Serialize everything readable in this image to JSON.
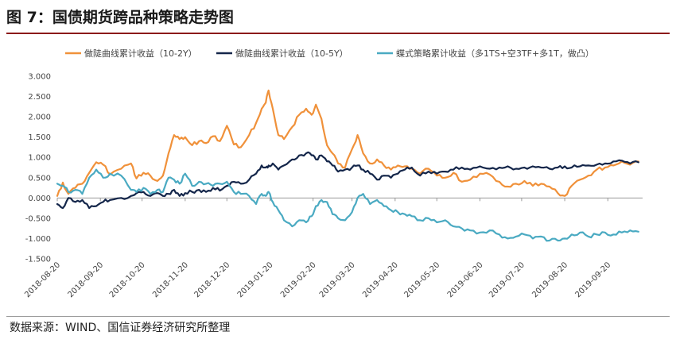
{
  "figure": {
    "title": "图 7：国债期货跨品种策略走势图",
    "source": "数据来源：WIND、国信证券经济研究所整理"
  },
  "chart_data": {
    "type": "line",
    "title": "图 7：国债期货跨品种策略走势图",
    "xlabel": "",
    "ylabel": "",
    "ylim": [
      -1.5,
      3.0
    ],
    "yticks": [
      "3.000",
      "2.500",
      "2.000",
      "1.500",
      "1.000",
      "0.500",
      "0.000",
      "-0.500",
      "-1.000",
      "-1.500"
    ],
    "yticks_values": [
      3.0,
      2.5,
      2.0,
      1.5,
      1.0,
      0.5,
      0.0,
      -0.5,
      -1.0,
      -1.5
    ],
    "xticks": [
      "2018-08-20",
      "2018-09-20",
      "2018-10-20",
      "2018-11-20",
      "2018-12-20",
      "2019-01-20",
      "2019-02-20",
      "2019-03-20",
      "2019-04-20",
      "2019-05-20",
      "2019-06-20",
      "2019-07-20",
      "2019-08-20",
      "2019-09-20"
    ],
    "x_range": [
      "2018-08-20",
      "2019-10-15"
    ],
    "grid": false,
    "legend_position": "top",
    "series": [
      {
        "name": "做陡曲线累计收益（10-2Y）",
        "color": "#f0913a",
        "points": [
          [
            "2018-08-20",
            0.05
          ],
          [
            "2018-08-24",
            0.38
          ],
          [
            "2018-08-28",
            0.1
          ],
          [
            "2018-09-02",
            0.25
          ],
          [
            "2018-09-07",
            0.35
          ],
          [
            "2018-09-12",
            0.62
          ],
          [
            "2018-09-17",
            0.88
          ],
          [
            "2018-09-22",
            0.82
          ],
          [
            "2018-09-27",
            0.58
          ],
          [
            "2018-10-05",
            0.72
          ],
          [
            "2018-10-12",
            0.85
          ],
          [
            "2018-10-16",
            0.48
          ],
          [
            "2018-10-21",
            0.62
          ],
          [
            "2018-10-26",
            0.55
          ],
          [
            "2018-10-31",
            0.42
          ],
          [
            "2018-11-04",
            0.55
          ],
          [
            "2018-11-08",
            1.1
          ],
          [
            "2018-11-12",
            1.55
          ],
          [
            "2018-11-16",
            1.45
          ],
          [
            "2018-11-20",
            1.5
          ],
          [
            "2018-11-25",
            1.3
          ],
          [
            "2018-11-30",
            1.4
          ],
          [
            "2018-12-05",
            1.35
          ],
          [
            "2018-12-10",
            1.52
          ],
          [
            "2018-12-15",
            1.4
          ],
          [
            "2018-12-20",
            1.78
          ],
          [
            "2018-12-25",
            1.32
          ],
          [
            "2018-12-30",
            1.25
          ],
          [
            "2019-01-05",
            1.55
          ],
          [
            "2019-01-10",
            1.85
          ],
          [
            "2019-01-14",
            2.2
          ],
          [
            "2019-01-17",
            2.35
          ],
          [
            "2019-01-19",
            2.65
          ],
          [
            "2019-01-22",
            2.2
          ],
          [
            "2019-01-26",
            1.55
          ],
          [
            "2019-01-30",
            1.45
          ],
          [
            "2019-02-05",
            1.75
          ],
          [
            "2019-02-10",
            2.05
          ],
          [
            "2019-02-15",
            2.2
          ],
          [
            "2019-02-19",
            2.05
          ],
          [
            "2019-02-22",
            2.3
          ],
          [
            "2019-02-26",
            1.95
          ],
          [
            "2019-03-02",
            1.3
          ],
          [
            "2019-03-06",
            1.1
          ],
          [
            "2019-03-10",
            0.85
          ],
          [
            "2019-03-15",
            0.75
          ],
          [
            "2019-03-20",
            1.2
          ],
          [
            "2019-03-24",
            1.55
          ],
          [
            "2019-03-28",
            1.1
          ],
          [
            "2019-04-02",
            0.85
          ],
          [
            "2019-04-07",
            0.95
          ],
          [
            "2019-04-12",
            0.8
          ],
          [
            "2019-04-17",
            0.7
          ],
          [
            "2019-04-22",
            0.8
          ],
          [
            "2019-04-27",
            0.78
          ],
          [
            "2019-05-02",
            0.72
          ],
          [
            "2019-05-08",
            0.6
          ],
          [
            "2019-05-14",
            0.72
          ],
          [
            "2019-05-20",
            0.55
          ],
          [
            "2019-05-26",
            0.5
          ],
          [
            "2019-06-01",
            0.62
          ],
          [
            "2019-06-07",
            0.4
          ],
          [
            "2019-06-13",
            0.45
          ],
          [
            "2019-06-20",
            0.6
          ],
          [
            "2019-06-27",
            0.58
          ],
          [
            "2019-07-04",
            0.4
          ],
          [
            "2019-07-10",
            0.28
          ],
          [
            "2019-07-16",
            0.35
          ],
          [
            "2019-07-22",
            0.42
          ],
          [
            "2019-07-28",
            0.3
          ],
          [
            "2019-08-03",
            0.35
          ],
          [
            "2019-08-09",
            0.28
          ],
          [
            "2019-08-15",
            0.12
          ],
          [
            "2019-08-20",
            0.05
          ],
          [
            "2019-08-25",
            0.3
          ],
          [
            "2019-08-31",
            0.45
          ],
          [
            "2019-09-06",
            0.55
          ],
          [
            "2019-09-12",
            0.7
          ],
          [
            "2019-09-18",
            0.75
          ],
          [
            "2019-09-24",
            0.8
          ],
          [
            "2019-09-30",
            0.9
          ],
          [
            "2019-10-06",
            0.82
          ],
          [
            "2019-10-12",
            0.9
          ]
        ]
      },
      {
        "name": "做陡曲线累计收益（10-5Y）",
        "color": "#14264a",
        "points": [
          [
            "2018-08-20",
            -0.15
          ],
          [
            "2018-08-24",
            -0.25
          ],
          [
            "2018-08-28",
            0.0
          ],
          [
            "2018-09-02",
            -0.1
          ],
          [
            "2018-09-07",
            -0.05
          ],
          [
            "2018-09-12",
            -0.25
          ],
          [
            "2018-09-17",
            -0.2
          ],
          [
            "2018-09-22",
            -0.1
          ],
          [
            "2018-09-27",
            -0.05
          ],
          [
            "2018-10-05",
            0.0
          ],
          [
            "2018-10-12",
            0.05
          ],
          [
            "2018-10-16",
            0.12
          ],
          [
            "2018-10-21",
            0.15
          ],
          [
            "2018-10-26",
            0.05
          ],
          [
            "2018-10-31",
            0.12
          ],
          [
            "2018-11-04",
            0.05
          ],
          [
            "2018-11-08",
            0.1
          ],
          [
            "2018-11-12",
            0.2
          ],
          [
            "2018-11-16",
            0.05
          ],
          [
            "2018-11-20",
            0.12
          ],
          [
            "2018-11-25",
            0.15
          ],
          [
            "2018-11-30",
            0.2
          ],
          [
            "2018-12-05",
            0.15
          ],
          [
            "2018-12-10",
            0.25
          ],
          [
            "2018-12-15",
            0.18
          ],
          [
            "2018-12-20",
            0.3
          ],
          [
            "2018-12-25",
            0.4
          ],
          [
            "2018-12-30",
            0.35
          ],
          [
            "2019-01-05",
            0.45
          ],
          [
            "2019-01-10",
            0.6
          ],
          [
            "2019-01-14",
            0.8
          ],
          [
            "2019-01-17",
            0.75
          ],
          [
            "2019-01-19",
            0.8
          ],
          [
            "2019-01-22",
            0.85
          ],
          [
            "2019-01-26",
            0.7
          ],
          [
            "2019-01-30",
            0.8
          ],
          [
            "2019-02-05",
            0.95
          ],
          [
            "2019-02-10",
            1.05
          ],
          [
            "2019-02-15",
            1.1
          ],
          [
            "2019-02-19",
            1.05
          ],
          [
            "2019-02-22",
            0.95
          ],
          [
            "2019-02-26",
            1.05
          ],
          [
            "2019-03-02",
            0.9
          ],
          [
            "2019-03-06",
            0.8
          ],
          [
            "2019-03-10",
            0.65
          ],
          [
            "2019-03-15",
            0.7
          ],
          [
            "2019-03-20",
            0.75
          ],
          [
            "2019-03-24",
            0.8
          ],
          [
            "2019-03-28",
            0.7
          ],
          [
            "2019-04-02",
            0.6
          ],
          [
            "2019-04-07",
            0.45
          ],
          [
            "2019-04-12",
            0.55
          ],
          [
            "2019-04-17",
            0.5
          ],
          [
            "2019-04-22",
            0.6
          ],
          [
            "2019-04-27",
            0.7
          ],
          [
            "2019-05-02",
            0.75
          ],
          [
            "2019-05-08",
            0.55
          ],
          [
            "2019-05-14",
            0.65
          ],
          [
            "2019-05-20",
            0.6
          ],
          [
            "2019-05-26",
            0.65
          ],
          [
            "2019-06-01",
            0.7
          ],
          [
            "2019-06-07",
            0.75
          ],
          [
            "2019-06-13",
            0.7
          ],
          [
            "2019-06-20",
            0.78
          ],
          [
            "2019-06-27",
            0.72
          ],
          [
            "2019-07-04",
            0.75
          ],
          [
            "2019-07-10",
            0.78
          ],
          [
            "2019-07-16",
            0.72
          ],
          [
            "2019-07-22",
            0.75
          ],
          [
            "2019-07-28",
            0.78
          ],
          [
            "2019-08-03",
            0.75
          ],
          [
            "2019-08-09",
            0.72
          ],
          [
            "2019-08-15",
            0.75
          ],
          [
            "2019-08-20",
            0.78
          ],
          [
            "2019-08-25",
            0.75
          ],
          [
            "2019-08-31",
            0.78
          ],
          [
            "2019-09-06",
            0.8
          ],
          [
            "2019-09-12",
            0.82
          ],
          [
            "2019-09-18",
            0.85
          ],
          [
            "2019-09-24",
            0.9
          ],
          [
            "2019-09-30",
            0.92
          ],
          [
            "2019-10-06",
            0.85
          ],
          [
            "2019-10-12",
            0.88
          ]
        ]
      },
      {
        "name": "蝶式策略累计收益（多1TS+空3TF+多1T，做凸）",
        "color": "#4aaac2",
        "points": [
          [
            "2018-08-20",
            0.35
          ],
          [
            "2018-08-24",
            0.3
          ],
          [
            "2018-08-28",
            0.15
          ],
          [
            "2018-09-02",
            0.2
          ],
          [
            "2018-09-07",
            0.1
          ],
          [
            "2018-09-12",
            0.5
          ],
          [
            "2018-09-17",
            0.7
          ],
          [
            "2018-09-22",
            0.5
          ],
          [
            "2018-09-27",
            0.6
          ],
          [
            "2018-10-05",
            0.55
          ],
          [
            "2018-10-12",
            0.2
          ],
          [
            "2018-10-16",
            0.15
          ],
          [
            "2018-10-21",
            0.25
          ],
          [
            "2018-10-26",
            0.1
          ],
          [
            "2018-10-31",
            0.2
          ],
          [
            "2018-11-04",
            0.15
          ],
          [
            "2018-11-08",
            0.5
          ],
          [
            "2018-11-12",
            0.45
          ],
          [
            "2018-11-16",
            0.35
          ],
          [
            "2018-11-20",
            0.6
          ],
          [
            "2018-11-25",
            0.3
          ],
          [
            "2018-11-30",
            0.4
          ],
          [
            "2018-12-05",
            0.35
          ],
          [
            "2018-12-10",
            0.3
          ],
          [
            "2018-12-15",
            0.35
          ],
          [
            "2018-12-20",
            0.4
          ],
          [
            "2018-12-25",
            0.15
          ],
          [
            "2018-12-30",
            0.1
          ],
          [
            "2019-01-05",
            0.05
          ],
          [
            "2019-01-10",
            -0.15
          ],
          [
            "2019-01-14",
            0.1
          ],
          [
            "2019-01-17",
            0.05
          ],
          [
            "2019-01-19",
            0.15
          ],
          [
            "2019-01-22",
            -0.1
          ],
          [
            "2019-01-26",
            -0.3
          ],
          [
            "2019-01-30",
            -0.55
          ],
          [
            "2019-02-05",
            -0.7
          ],
          [
            "2019-02-10",
            -0.55
          ],
          [
            "2019-02-15",
            -0.6
          ],
          [
            "2019-02-19",
            -0.45
          ],
          [
            "2019-02-22",
            -0.2
          ],
          [
            "2019-02-26",
            -0.05
          ],
          [
            "2019-03-02",
            -0.1
          ],
          [
            "2019-03-06",
            -0.4
          ],
          [
            "2019-03-10",
            -0.5
          ],
          [
            "2019-03-15",
            -0.55
          ],
          [
            "2019-03-20",
            -0.35
          ],
          [
            "2019-03-24",
            0.0
          ],
          [
            "2019-03-28",
            0.1
          ],
          [
            "2019-04-02",
            -0.15
          ],
          [
            "2019-04-07",
            -0.05
          ],
          [
            "2019-04-12",
            -0.2
          ],
          [
            "2019-04-17",
            -0.3
          ],
          [
            "2019-04-22",
            -0.35
          ],
          [
            "2019-04-27",
            -0.4
          ],
          [
            "2019-05-02",
            -0.45
          ],
          [
            "2019-05-08",
            -0.55
          ],
          [
            "2019-05-14",
            -0.5
          ],
          [
            "2019-05-20",
            -0.6
          ],
          [
            "2019-05-26",
            -0.55
          ],
          [
            "2019-06-01",
            -0.7
          ],
          [
            "2019-06-07",
            -0.75
          ],
          [
            "2019-06-13",
            -0.8
          ],
          [
            "2019-06-20",
            -0.85
          ],
          [
            "2019-06-27",
            -0.8
          ],
          [
            "2019-07-04",
            -0.9
          ],
          [
            "2019-07-10",
            -1.0
          ],
          [
            "2019-07-16",
            -0.95
          ],
          [
            "2019-07-22",
            -0.9
          ],
          [
            "2019-07-28",
            -1.0
          ],
          [
            "2019-08-03",
            -0.95
          ],
          [
            "2019-08-09",
            -1.05
          ],
          [
            "2019-08-15",
            -1.05
          ],
          [
            "2019-08-20",
            -1.0
          ],
          [
            "2019-08-25",
            -0.9
          ],
          [
            "2019-08-31",
            -0.85
          ],
          [
            "2019-09-06",
            -0.95
          ],
          [
            "2019-09-12",
            -0.9
          ],
          [
            "2019-09-18",
            -0.85
          ],
          [
            "2019-09-24",
            -0.9
          ],
          [
            "2019-09-30",
            -0.85
          ],
          [
            "2019-10-06",
            -0.8
          ],
          [
            "2019-10-12",
            -0.83
          ]
        ]
      }
    ]
  }
}
